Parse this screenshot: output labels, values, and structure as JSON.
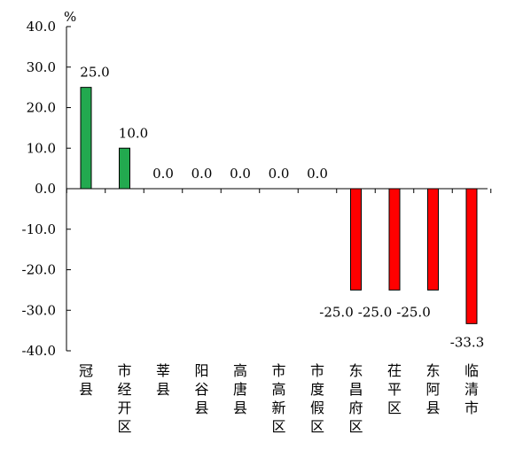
{
  "chart_data": {
    "type": "bar",
    "unit": "%",
    "categories": [
      "冠县",
      "市经开区",
      "莘县",
      "阳谷县",
      "高唐县",
      "市高新区",
      "市度假区",
      "东昌府区",
      "茌平区",
      "东阿县",
      "临清市"
    ],
    "values": [
      25.0,
      10.0,
      0.0,
      0.0,
      0.0,
      0.0,
      0.0,
      -25.0,
      -25.0,
      -25.0,
      -33.3
    ],
    "data_labels": [
      "25.0",
      "10.0",
      "0.0",
      "0.0",
      "0.0",
      "0.0",
      "0.0",
      "-25.0",
      "-25.0",
      "-25.0",
      "-33.3"
    ],
    "ylim": [
      -40,
      40
    ],
    "yticks": [
      40,
      30,
      20,
      10,
      0,
      -10,
      -20,
      -30,
      -40
    ],
    "ytick_labels": [
      "40.0",
      "30.0",
      "20.0",
      "10.0",
      "0.0",
      "-10.0",
      "-20.0",
      "-30.0",
      "-40.0"
    ],
    "grid": false,
    "legend": "none",
    "colors": {
      "positive": "#22a94f",
      "negative": "#ff0000",
      "outline": "#000000"
    }
  }
}
